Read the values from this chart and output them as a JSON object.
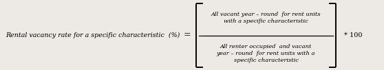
{
  "lhs_text": "Rental vacancy rate for a specific characteristic  (%)",
  "equals": "=",
  "numerator": "All vacant year – round  for rent units\nwith a specific characteristic",
  "denominator": "All renter occupied  and vacant\nyear – round  for rent units with a\nspecific characteristic",
  "multiplier": "* 100",
  "bg_color": "#ede9e4",
  "text_color": "#000000",
  "font_family": "serif",
  "fig_width": 5.58,
  "fig_height": 1.02,
  "dpi": 100
}
